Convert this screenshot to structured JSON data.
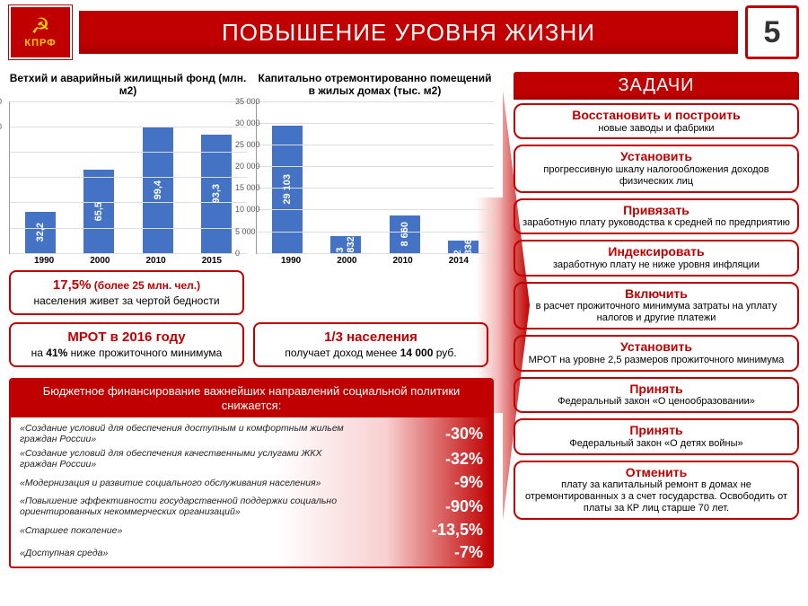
{
  "header": {
    "logo_text": "КПРФ",
    "title": "ПОВЫШЕНИЕ УРОВНЯ ЖИЗНИ",
    "page_number": "5"
  },
  "colors": {
    "primary": "#c00000",
    "bar": "#4472c4",
    "logo_gold": "#ffcc00"
  },
  "chart1": {
    "type": "bar",
    "title": "Ветхий и аварийный жилищный фонд (млн. м2)",
    "categories": [
      "1990",
      "2000",
      "2010",
      "2015"
    ],
    "values": [
      32.2,
      65.5,
      99.4,
      93.3
    ],
    "labels": [
      "32,2",
      "65,5",
      "99,4",
      "93,3"
    ],
    "ylim": [
      0,
      120
    ],
    "ytick_step": 20,
    "bar_color": "#4472c4",
    "title_fontsize": 12
  },
  "chart2": {
    "type": "bar",
    "title": "Капитально отремонтированно помещений в жилых домах (тыс. м2)",
    "categories": [
      "1990",
      "2000",
      "2010",
      "2014"
    ],
    "values": [
      29103,
      3832,
      8660,
      2836
    ],
    "labels": [
      "29 103",
      "3 832",
      "8 660",
      "2 836"
    ],
    "ylim": [
      0,
      35000
    ],
    "ytick_step": 5000,
    "bar_color": "#4472c4",
    "title_fontsize": 12
  },
  "stats": [
    {
      "lead": "17,5%",
      "lead2": "(более 25 млн. чел.)",
      "body": "населения живет за чертой бедности"
    },
    {
      "lead": "1/3 населения",
      "body_pre": "получает доход менее",
      "body_strong": "14 000",
      "body_post": " руб."
    }
  ],
  "stat_mrot": {
    "lead": "МРОТ в 2016 году",
    "body_pre": "на ",
    "body_strong": "41%",
    "body_post": " ниже прожиточного минимума"
  },
  "budget": {
    "header": "Бюджетное финансирование важнейших направлений социальной политики снижается:",
    "rows": [
      {
        "name": "«Создание условий для обеспечения доступным и комфортным жильем граждан России»",
        "pct": "-30%"
      },
      {
        "name": "«Создание условий для обеспечения качественными услугами ЖКХ граждан России»",
        "pct": "-32%"
      },
      {
        "name": "«Модернизация и развитие социального обслуживания населения»",
        "pct": "-9%"
      },
      {
        "name": "«Повышение эффективности государственной поддержки социально ориентированных некоммерческих организаций»",
        "pct": "-90%"
      },
      {
        "name": "«Старшее поколение»",
        "pct": "-13,5%"
      },
      {
        "name": "«Доступная среда»",
        "pct": "-7%"
      }
    ]
  },
  "tasks_header": "ЗАДАЧИ",
  "tasks": [
    {
      "title": "Восстановить и построить",
      "body": "новые заводы и фабрики"
    },
    {
      "title": "Установить",
      "body": "прогрессивную шкалу налогообложения доходов физических лиц"
    },
    {
      "title": "Привязать",
      "body": "заработную плату руководства к средней по предприятию"
    },
    {
      "title": "Индексировать",
      "body": "заработную плату не ниже уровня инфляции"
    },
    {
      "title": "Включить",
      "body": "в расчет прожиточного минимума затраты на уплату налогов и другие платежи"
    },
    {
      "title": "Установить",
      "body": "МРОТ на уровне 2,5 размеров прожиточного минимума"
    },
    {
      "title": "Принять",
      "body": "Федеральный закон «О ценообразовании»"
    },
    {
      "title": "Принять",
      "body": "Федеральный закон «О детях войны»"
    },
    {
      "title": "Отменить",
      "body": "плату за капитальный ремонт в домах не отремонтированных з а счет государства. Освободить от платы за КР лиц старше 70 лет."
    }
  ]
}
